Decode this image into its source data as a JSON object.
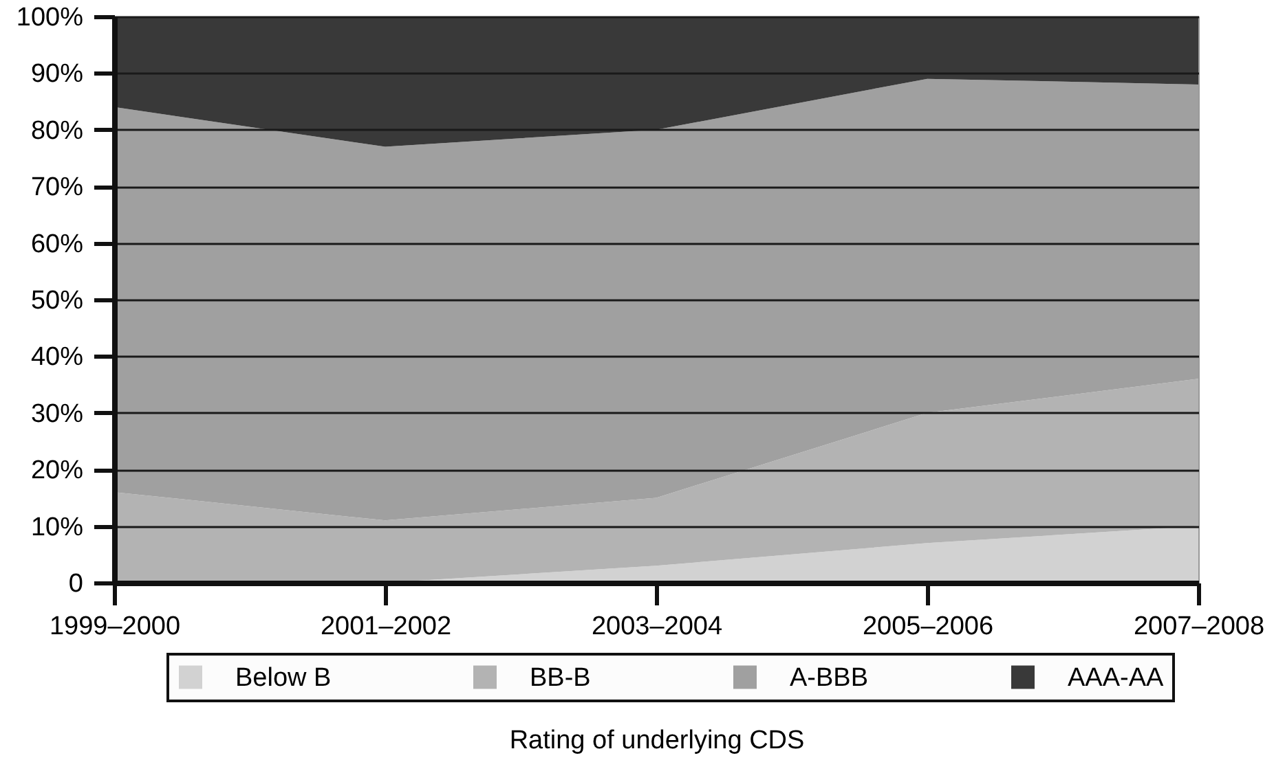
{
  "chart_data": {
    "type": "area",
    "stacked": true,
    "categories": [
      "1999–2000",
      "2001–2002",
      "2003–2004",
      "2005–2006",
      "2007–2008"
    ],
    "series": [
      {
        "name": "Below B",
        "color": "#d2d2d2",
        "values": [
          0,
          0,
          3,
          7,
          10
        ]
      },
      {
        "name": "BB-B",
        "color": "#b3b3b3",
        "values": [
          16,
          11,
          12,
          23,
          26
        ]
      },
      {
        "name": "A-BBB",
        "color": "#a0a0a0",
        "values": [
          68,
          66,
          65,
          59,
          52
        ]
      },
      {
        "name": "AAA-AA",
        "color": "#393939",
        "values": [
          16,
          23,
          20,
          11,
          12
        ]
      }
    ],
    "xlabel": "Rating of underlying CDS",
    "ylim": [
      0,
      100
    ],
    "yticks": [
      {
        "value": 0,
        "label": "0"
      },
      {
        "value": 10,
        "label": "10%"
      },
      {
        "value": 20,
        "label": "20%"
      },
      {
        "value": 30,
        "label": "30%"
      },
      {
        "value": 40,
        "label": "40%"
      },
      {
        "value": 50,
        "label": "50%"
      },
      {
        "value": 60,
        "label": "60%"
      },
      {
        "value": 70,
        "label": "70%"
      },
      {
        "value": 80,
        "label": "80%"
      },
      {
        "value": 90,
        "label": "90%"
      },
      {
        "value": 100,
        "label": "100%"
      }
    ],
    "grid": "y",
    "legend": "bottom"
  }
}
